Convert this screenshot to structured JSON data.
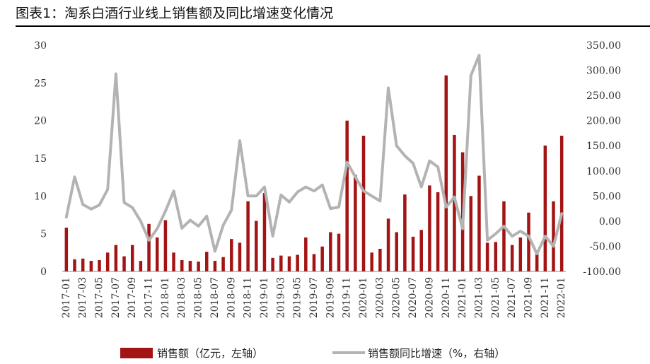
{
  "header": {
    "title": "图表1：淘系白酒行业线上销售额及同比增速变化情况"
  },
  "chart_data": {
    "type": "bar-line",
    "title": "图表1：淘系白酒行业线上销售额及同比增速变化情况",
    "categories": [
      "2017-01",
      "2017-02",
      "2017-03",
      "2017-04",
      "2017-05",
      "2017-06",
      "2017-07",
      "2017-08",
      "2017-09",
      "2017-10",
      "2017-11",
      "2017-12",
      "2018-01",
      "2018-02",
      "2018-03",
      "2018-04",
      "2018-05",
      "2018-06",
      "2018-07",
      "2018-08",
      "2018-09",
      "2018-10",
      "2018-11",
      "2018-12",
      "2019-01",
      "2019-02",
      "2019-03",
      "2019-04",
      "2019-05",
      "2019-06",
      "2019-07",
      "2019-08",
      "2019-09",
      "2019-10",
      "2019-11",
      "2019-12",
      "2020-01",
      "2020-02",
      "2020-03",
      "2020-04",
      "2020-05",
      "2020-06",
      "2020-07",
      "2020-08",
      "2020-09",
      "2020-10",
      "2020-11",
      "2020-12",
      "2021-01",
      "2021-02",
      "2021-03",
      "2021-04",
      "2021-05",
      "2021-06",
      "2021-07",
      "2021-08",
      "2021-09",
      "2021-10",
      "2021-11",
      "2021-12",
      "2022-01"
    ],
    "x_tick_labels": [
      "2017-01",
      "2017-03",
      "2017-05",
      "2017-07",
      "2017-09",
      "2017-11",
      "2018-01",
      "2018-03",
      "2018-05",
      "2018-07",
      "2018-09",
      "2018-11",
      "2019-01",
      "2019-03",
      "2019-05",
      "2019-07",
      "2019-09",
      "2019-11",
      "2020-01",
      "2020-03",
      "2020-05",
      "2020-07",
      "2020-09",
      "2020-11",
      "2021-01",
      "2021-03",
      "2021-05",
      "2021-07",
      "2021-09",
      "2021-11",
      "2022-01"
    ],
    "series": [
      {
        "name": "销售额（亿元，左轴）",
        "type": "bar",
        "axis": "left",
        "color": "#a31515",
        "values": [
          5.8,
          1.6,
          1.7,
          1.4,
          1.5,
          2.5,
          3.5,
          2.0,
          3.5,
          1.4,
          6.3,
          4.5,
          6.8,
          2.5,
          1.5,
          1.4,
          1.3,
          2.6,
          1.4,
          1.9,
          4.3,
          3.8,
          9.3,
          6.7,
          10.4,
          1.8,
          2.1,
          2.0,
          2.2,
          4.5,
          2.3,
          3.3,
          5.2,
          5.0,
          20.0,
          12.8,
          18.0,
          2.5,
          3.0,
          7.0,
          5.2,
          10.2,
          4.6,
          5.5,
          11.4,
          10.5,
          26.0,
          18.1,
          15.8,
          10.0,
          12.7,
          3.8,
          3.9,
          9.3,
          3.5,
          4.5,
          7.8,
          2.5,
          16.7,
          9.3,
          18.0
        ]
      },
      {
        "name": "销售额同比增速（%，右轴）",
        "type": "line",
        "axis": "right",
        "color": "#b3b3b3",
        "values": [
          8,
          88,
          33,
          24,
          32,
          63,
          293,
          37,
          27,
          0,
          -38,
          -15,
          20,
          60,
          -14,
          2,
          -10,
          10,
          -60,
          -8,
          22,
          160,
          50,
          50,
          68,
          -30,
          52,
          38,
          58,
          68,
          60,
          72,
          25,
          28,
          117,
          88,
          60,
          50,
          40,
          265,
          150,
          130,
          115,
          68,
          120,
          108,
          28,
          48,
          -15,
          290,
          330,
          -38,
          -25,
          -10,
          -30,
          -20,
          -30,
          -65,
          -30,
          -50,
          15
        ]
      }
    ],
    "left_axis": {
      "min": 0,
      "max": 30,
      "ticks": [
        "0",
        "5",
        "10",
        "15",
        "20",
        "25",
        "30"
      ]
    },
    "right_axis": {
      "min": -100,
      "max": 350,
      "ticks": [
        "-100.00",
        "-50.00",
        "0.00",
        "50.00",
        "100.00",
        "150.00",
        "200.00",
        "250.00",
        "300.00",
        "350.00"
      ]
    },
    "legend": {
      "position": "bottom",
      "items": [
        "销售额（亿元，左轴）",
        "销售额同比增速（%，右轴）"
      ]
    }
  }
}
